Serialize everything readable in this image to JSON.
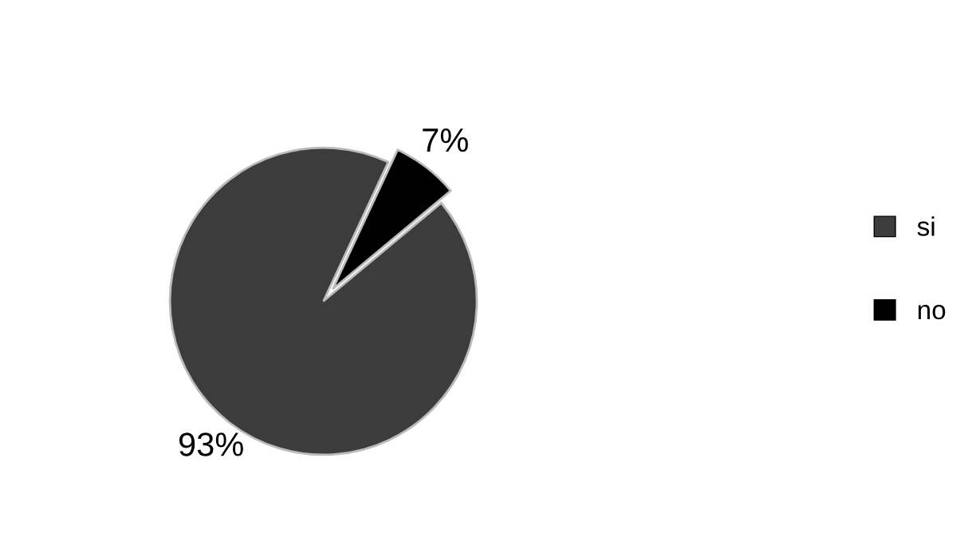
{
  "chart_data": {
    "type": "pie",
    "categories": [
      "si",
      "no"
    ],
    "values": [
      93,
      7
    ],
    "colors": [
      "#3c3c3c",
      "#000000"
    ],
    "value_labels": [
      "93%",
      "7%"
    ],
    "legend": "right"
  }
}
